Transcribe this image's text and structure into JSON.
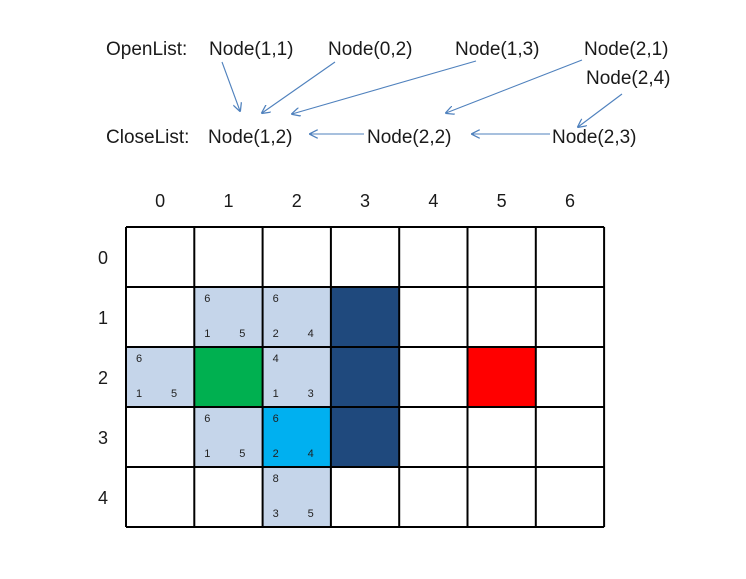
{
  "open_list": {
    "label": "OpenList:",
    "nodes": [
      "Node(1,1)",
      "Node(0,2)",
      "Node(1,3)",
      "Node(2,1)"
    ],
    "new_node": "Node(2,4)"
  },
  "close_list": {
    "label": "CloseList:",
    "nodes": [
      "Node(1,2)",
      "Node(2,2)",
      "Node(2,3)"
    ]
  },
  "grid": {
    "columns": [
      "0",
      "1",
      "2",
      "3",
      "4",
      "5",
      "6"
    ],
    "rows": [
      "0",
      "1",
      "2",
      "3",
      "4"
    ],
    "cells": [
      {
        "row": 1,
        "col": 1,
        "kind": "open",
        "f": "6",
        "g": "1",
        "h": "5"
      },
      {
        "row": 1,
        "col": 2,
        "kind": "open",
        "f": "6",
        "g": "2",
        "h": "4"
      },
      {
        "row": 2,
        "col": 0,
        "kind": "open",
        "f": "6",
        "g": "1",
        "h": "5"
      },
      {
        "row": 2,
        "col": 1,
        "kind": "start"
      },
      {
        "row": 2,
        "col": 2,
        "kind": "open",
        "f": "4",
        "g": "1",
        "h": "3"
      },
      {
        "row": 3,
        "col": 1,
        "kind": "open",
        "f": "6",
        "g": "1",
        "h": "5"
      },
      {
        "row": 3,
        "col": 2,
        "kind": "current",
        "f": "6",
        "g": "2",
        "h": "4"
      },
      {
        "row": 4,
        "col": 2,
        "kind": "open",
        "f": "8",
        "g": "3",
        "h": "5"
      },
      {
        "row": 1,
        "col": 3,
        "kind": "wall"
      },
      {
        "row": 2,
        "col": 3,
        "kind": "wall"
      },
      {
        "row": 3,
        "col": 3,
        "kind": "wall"
      },
      {
        "row": 2,
        "col": 5,
        "kind": "goal"
      }
    ]
  },
  "colors": {
    "open": "#c5d5ea",
    "start": "#00b050",
    "current": "#00b0f0",
    "wall": "#1f497d",
    "goal": "#ff0000",
    "arrow": "#4f81bd",
    "new_node": "#ff0000",
    "grid_line": "#000000",
    "text": "#1a1a1a"
  }
}
